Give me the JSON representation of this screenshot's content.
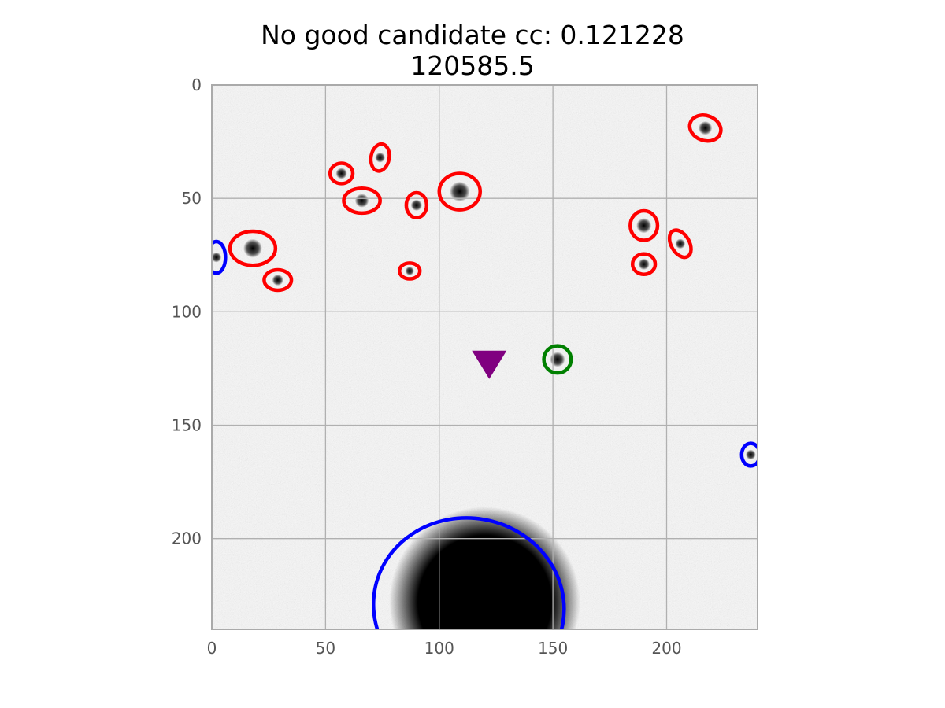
{
  "chart_data": {
    "type": "scatter",
    "title_lines": [
      "No good candidate cc: 0.121228",
      "120585.5"
    ],
    "xlabel": "",
    "ylabel": "",
    "xlim": [
      0,
      240
    ],
    "ylim": [
      240,
      0
    ],
    "y_inverted": true,
    "grid": true,
    "x_ticks": [
      0,
      50,
      100,
      150,
      200
    ],
    "y_ticks": [
      0,
      50,
      100,
      150,
      200
    ],
    "background": "noisy grayscale astronomical cutout",
    "bright_source": {
      "x": 120,
      "y": 228,
      "r": 40
    },
    "colors": {
      "red": "#ff0000",
      "blue": "#0000ff",
      "green": "#008000",
      "marker": "#800080",
      "grid": "#b0b0b0"
    },
    "ellipses": [
      {
        "series": "red",
        "x": 217,
        "y": 19,
        "rx": 7,
        "ry": 5.5,
        "angle": 20
      },
      {
        "series": "red",
        "x": 74,
        "y": 32,
        "rx": 4,
        "ry": 6,
        "angle": 10
      },
      {
        "series": "red",
        "x": 57,
        "y": 39,
        "rx": 5,
        "ry": 4.5,
        "angle": 0
      },
      {
        "series": "red",
        "x": 66,
        "y": 51,
        "rx": 8,
        "ry": 5.5,
        "angle": 0
      },
      {
        "series": "red",
        "x": 90,
        "y": 53,
        "rx": 4.5,
        "ry": 5.5,
        "angle": 0
      },
      {
        "series": "red",
        "x": 109,
        "y": 47,
        "rx": 9,
        "ry": 8,
        "angle": 0
      },
      {
        "series": "red",
        "x": 190,
        "y": 62,
        "rx": 6,
        "ry": 6.5,
        "angle": 0
      },
      {
        "series": "red",
        "x": 206,
        "y": 70,
        "rx": 4,
        "ry": 6.5,
        "angle": -30
      },
      {
        "series": "red",
        "x": 18,
        "y": 72,
        "rx": 10,
        "ry": 7.5,
        "angle": 0
      },
      {
        "series": "red",
        "x": 190,
        "y": 79,
        "rx": 5,
        "ry": 4.5,
        "angle": 0
      },
      {
        "series": "red",
        "x": 87,
        "y": 82,
        "rx": 4.5,
        "ry": 3.5,
        "angle": 0
      },
      {
        "series": "red",
        "x": 29,
        "y": 86,
        "rx": 6,
        "ry": 4.5,
        "angle": 0
      },
      {
        "series": "blue",
        "x": 2,
        "y": 76,
        "rx": 4,
        "ry": 7,
        "angle": 0
      },
      {
        "series": "blue",
        "x": 237,
        "y": 163,
        "rx": 4,
        "ry": 5,
        "angle": 0
      },
      {
        "series": "blue",
        "x": 113,
        "y": 230,
        "rx": 42,
        "ry": 39,
        "angle": 10
      },
      {
        "series": "green",
        "x": 152,
        "y": 121,
        "rx": 6,
        "ry": 6,
        "angle": 0
      }
    ],
    "marker": {
      "shape": "triangle-down",
      "x": 122,
      "y": 122
    }
  }
}
